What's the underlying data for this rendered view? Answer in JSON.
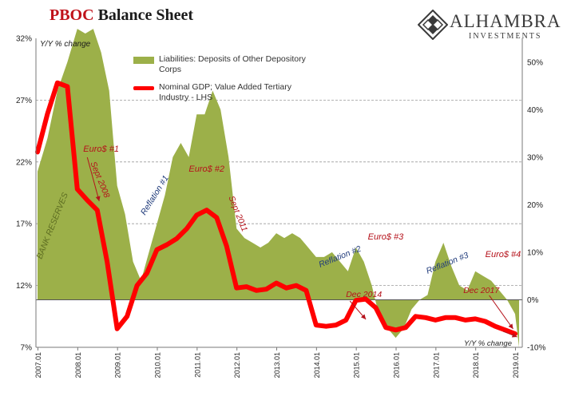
{
  "header": {
    "title_red": "PBOC",
    "title_rest": " Balance Sheet",
    "logo_name": "ALHAMBRA",
    "logo_sub": "INVESTMENTS"
  },
  "chart_data": {
    "type": "line",
    "title": "PBOC Balance Sheet",
    "ylabel": "Y/Y % change",
    "xlabel_note": "Y/Y % change",
    "ylim_left": [
      7,
      32
    ],
    "yticks_left": [
      "7%",
      "12%",
      "17%",
      "22%",
      "27%",
      "32%"
    ],
    "ylim_right": [
      -10,
      55
    ],
    "yticks_right": [
      "-10%",
      "0%",
      "10%",
      "20%",
      "30%",
      "40%",
      "50%"
    ],
    "xticks": [
      "2007.01",
      "2008.01",
      "2009.01",
      "2010.01",
      "2011.01",
      "2012.01",
      "2013.01",
      "2014.01",
      "2015.01",
      "2016.01",
      "2017.01",
      "2018.01",
      "2019.01"
    ],
    "legend_position": "top-left",
    "colors": {
      "area": "#9cb049",
      "line": "#ff0000",
      "annotation_red": "#b5121b",
      "annotation_blue": "#1f3a7a"
    },
    "series": [
      {
        "name": "Liabilities: Deposits of Other Depository Corps",
        "axis": "right",
        "style": "area",
        "x": [
          2007.0,
          2007.25,
          2007.5,
          2007.75,
          2008.0,
          2008.2,
          2008.4,
          2008.6,
          2008.8,
          2009.0,
          2009.2,
          2009.4,
          2009.6,
          2009.8,
          2010.0,
          2010.2,
          2010.4,
          2010.6,
          2010.8,
          2011.0,
          2011.2,
          2011.4,
          2011.6,
          2011.8,
          2012.0,
          2012.2,
          2012.4,
          2012.6,
          2012.8,
          2013.0,
          2013.2,
          2013.4,
          2013.6,
          2013.8,
          2014.0,
          2014.2,
          2014.4,
          2014.6,
          2014.8,
          2015.0,
          2015.2,
          2015.4,
          2015.6,
          2015.8,
          2016.0,
          2016.2,
          2016.4,
          2016.6,
          2016.8,
          2017.0,
          2017.2,
          2017.4,
          2017.6,
          2017.8,
          2018.0,
          2018.2,
          2018.4,
          2018.6,
          2018.8,
          2019.0,
          2019.1
        ],
        "values": [
          27,
          34,
          44,
          50,
          57,
          56,
          57,
          52,
          44,
          24,
          18,
          8,
          4,
          10,
          16,
          22,
          30,
          33,
          30,
          39,
          39,
          44,
          40,
          30,
          15,
          13,
          12,
          11,
          12,
          14,
          13,
          14,
          13,
          11,
          9,
          9,
          10,
          8,
          6,
          11,
          8,
          3,
          -4,
          -6,
          -8,
          -6,
          -2,
          0,
          1,
          8,
          12,
          7,
          3,
          2,
          6,
          5,
          4,
          2,
          0,
          -3,
          -10
        ]
      },
      {
        "name": "Nominal GDP; Value Added Tertiary Industry - LHS",
        "axis": "left",
        "style": "line",
        "x": [
          2007.0,
          2007.25,
          2007.5,
          2007.75,
          2008.0,
          2008.25,
          2008.5,
          2008.75,
          2009.0,
          2009.25,
          2009.5,
          2009.75,
          2010.0,
          2010.25,
          2010.5,
          2010.75,
          2011.0,
          2011.25,
          2011.5,
          2011.75,
          2012.0,
          2012.25,
          2012.5,
          2012.75,
          2013.0,
          2013.25,
          2013.5,
          2013.75,
          2014.0,
          2014.25,
          2014.5,
          2014.75,
          2015.0,
          2015.25,
          2015.5,
          2015.75,
          2016.0,
          2016.25,
          2016.5,
          2016.75,
          2017.0,
          2017.25,
          2017.5,
          2017.75,
          2018.0,
          2018.25,
          2018.5,
          2018.75,
          2019.0
        ],
        "values": [
          22.8,
          25.9,
          28.4,
          28.1,
          19.8,
          18.9,
          18.1,
          13.9,
          8.5,
          9.5,
          12.0,
          13.0,
          14.9,
          15.3,
          15.8,
          16.6,
          17.7,
          18.1,
          17.5,
          15.2,
          11.8,
          11.9,
          11.6,
          11.7,
          12.2,
          11.8,
          12.0,
          11.6,
          8.8,
          8.7,
          8.8,
          9.2,
          10.8,
          10.9,
          10.2,
          8.6,
          8.4,
          8.6,
          9.5,
          9.4,
          9.2,
          9.4,
          9.4,
          9.2,
          9.3,
          9.1,
          8.7,
          8.4,
          8.1
        ]
      }
    ],
    "annotations": [
      {
        "text": "Euro$ #1",
        "color": "red"
      },
      {
        "text": "Sept 2008",
        "color": "red"
      },
      {
        "text": "Reflation #1",
        "color": "blue"
      },
      {
        "text": "Euro$ #2",
        "color": "red"
      },
      {
        "text": "Sept 2011",
        "color": "red"
      },
      {
        "text": "BANK RESERVES",
        "color": "green"
      },
      {
        "text": "Reflation #2",
        "color": "blue"
      },
      {
        "text": "Euro$ #3",
        "color": "red"
      },
      {
        "text": "Dec 2014",
        "color": "red"
      },
      {
        "text": "Reflation #3",
        "color": "blue"
      },
      {
        "text": "Dec 2017",
        "color": "red"
      },
      {
        "text": "Euro$ #4",
        "color": "red"
      }
    ]
  }
}
